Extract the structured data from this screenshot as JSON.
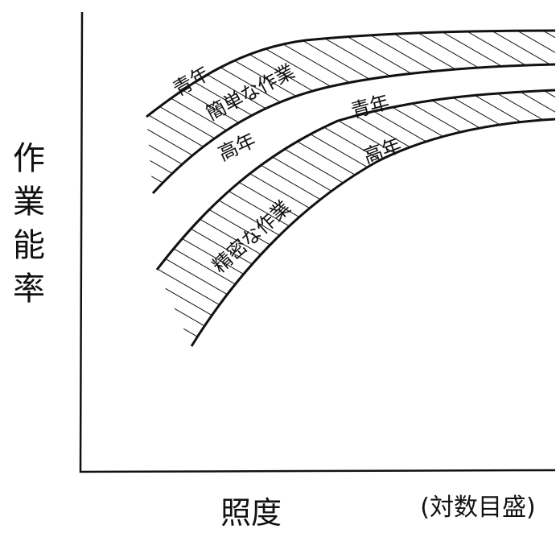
{
  "y_axis_label": "作業能率",
  "x_axis_label": "照度",
  "x_axis_note": "(対数目盛)",
  "bands": [
    {
      "label": "簡単な作業",
      "top_label": "青年",
      "bottom_label": "高年"
    },
    {
      "label": "精密な作業",
      "top_label": "青年",
      "bottom_label": "高年"
    }
  ]
}
